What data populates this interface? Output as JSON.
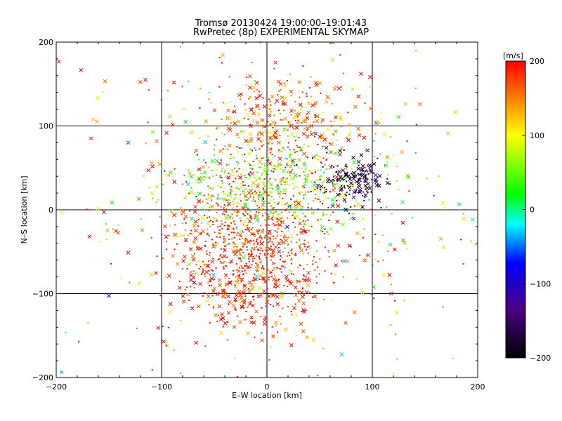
{
  "chart_data": {
    "type": "scatter",
    "title": "Tromsø 20130424 19:00:00–19:01:43",
    "subtitle": "RwPretec (8p) EXPERIMENTAL SKYMAP",
    "xlabel": "E–W location [km]",
    "ylabel": "N–S location [km]",
    "xlim": [
      -200,
      200
    ],
    "ylim": [
      -200,
      200
    ],
    "xticks": [
      -200,
      -100,
      0,
      100,
      200
    ],
    "yticks": [
      -200,
      -100,
      0,
      100,
      200
    ],
    "xtick_labels": [
      "−200",
      "−100",
      "0",
      "100",
      "200"
    ],
    "ytick_labels": [
      "−200",
      "−100",
      "0",
      "100",
      "200"
    ],
    "grid": true,
    "markers": [
      "dot",
      "x"
    ],
    "colorbar": {
      "label": "[m/s]",
      "range": [
        -200,
        200
      ],
      "ticks": [
        200,
        100,
        0,
        -100,
        -200
      ],
      "tick_labels": [
        "200",
        "100",
        "0",
        "−100",
        "−200"
      ],
      "colormap": [
        "#000000",
        "#4b0082",
        "#0000ff",
        "#00ffff",
        "#00ff00",
        "#ffff00",
        "#ff0000"
      ]
    },
    "clusters": [
      {
        "center": [
          -15,
          -50
        ],
        "spread": [
          35,
          45
        ],
        "count": 900,
        "velocity_mean": 185,
        "velocity_spread": 25
      },
      {
        "center": [
          0,
          25
        ],
        "spread": [
          45,
          30
        ],
        "count": 600,
        "velocity_mean": 60,
        "velocity_spread": 70
      },
      {
        "center": [
          80,
          35
        ],
        "spread": [
          18,
          14
        ],
        "count": 170,
        "velocity_mean": -185,
        "velocity_spread": 25
      },
      {
        "center": [
          20,
          110
        ],
        "spread": [
          40,
          30
        ],
        "count": 300,
        "velocity_mean": 175,
        "velocity_spread": 40
      },
      {
        "center": [
          0,
          0
        ],
        "spread": [
          110,
          110
        ],
        "count": 450,
        "velocity_mean": 130,
        "velocity_spread": 110
      }
    ]
  }
}
